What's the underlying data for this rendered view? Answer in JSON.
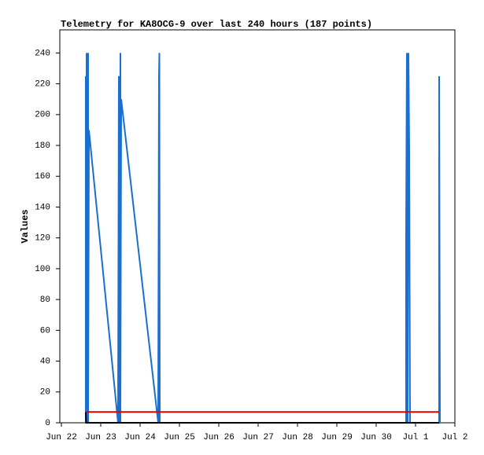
{
  "chart_data": {
    "type": "line",
    "title": "Telemetry for KA8OCG-9 over last 240 hours (187 points)",
    "ylabel": "Values",
    "xlim": [
      0,
      10
    ],
    "xticks": [
      {
        "value": 0,
        "label": "Jun 22"
      },
      {
        "value": 1,
        "label": "Jun 23"
      },
      {
        "value": 2,
        "label": "Jun 24"
      },
      {
        "value": 3,
        "label": "Jun 25"
      },
      {
        "value": 4,
        "label": "Jun 26"
      },
      {
        "value": 5,
        "label": "Jun 27"
      },
      {
        "value": 6,
        "label": "Jun 28"
      },
      {
        "value": 7,
        "label": "Jun 29"
      },
      {
        "value": 8,
        "label": "Jun 30"
      },
      {
        "value": 9,
        "label": "Jul 1"
      },
      {
        "value": 10,
        "label": "Jul 2"
      }
    ],
    "ylim": [
      0,
      255
    ],
    "yticks": [
      0,
      20,
      40,
      60,
      80,
      100,
      120,
      140,
      160,
      180,
      200,
      220,
      240
    ],
    "grid": false,
    "series": [
      {
        "color": "#1a6fcf",
        "x": [
          0.62,
          0.62,
          0.64,
          0.64,
          0.66,
          0.68,
          0.68,
          0.7,
          1.44,
          1.46,
          1.47,
          1.5,
          1.5,
          1.5,
          1.52,
          2.46,
          2.48,
          2.49,
          2.5,
          8.76,
          8.76,
          8.78,
          8.8,
          8.82,
          8.84,
          8.86,
          9.6,
          9.6,
          9.62
        ],
        "values": [
          0,
          225,
          0,
          240,
          225,
          240,
          0,
          190,
          0,
          225,
          0,
          240,
          137,
          0,
          210,
          0,
          225,
          240,
          0,
          0,
          120,
          240,
          0,
          240,
          177,
          0,
          0,
          225,
          0
        ]
      },
      {
        "color": "#000000",
        "x": [
          0.62,
          0.63,
          9.6
        ],
        "values": [
          7,
          0,
          0
        ]
      },
      {
        "color": "#e00000",
        "x": [
          0.62,
          9.6
        ],
        "values": [
          7,
          7
        ]
      }
    ]
  }
}
